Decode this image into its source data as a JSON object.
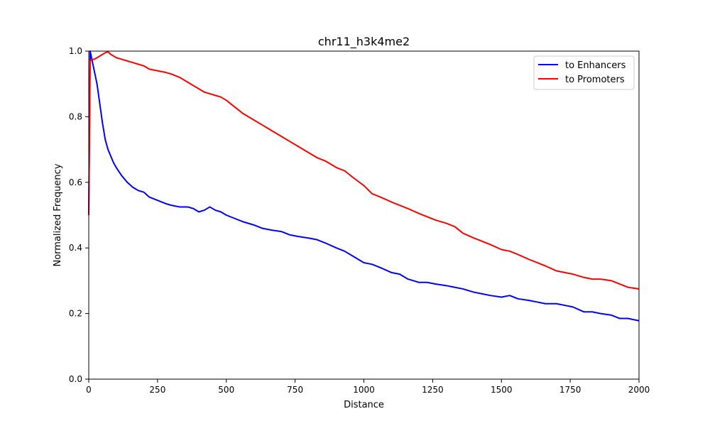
{
  "chart_data": {
    "type": "line",
    "title": "chr11_h3k4me2",
    "xlabel": "Distance",
    "ylabel": "Normalized Frequency",
    "xlim": [
      0,
      2000
    ],
    "ylim": [
      0,
      1.0
    ],
    "xticks": [
      0,
      250,
      500,
      750,
      1000,
      1250,
      1500,
      1750,
      2000
    ],
    "xtick_labels": [
      "0",
      "250",
      "500",
      "750",
      "1000",
      "1250",
      "1500",
      "1750",
      "2000"
    ],
    "yticks": [
      0,
      0.2,
      0.4,
      0.6,
      0.8,
      1.0
    ],
    "ytick_labels": [
      "0.0",
      "0.2",
      "0.4",
      "0.6",
      "0.8",
      "1.0"
    ],
    "grid": false,
    "legend_position": "top-right",
    "series": [
      {
        "name": "to Enhancers",
        "color": "#0000ff",
        "x": [
          0,
          5,
          10,
          20,
          30,
          40,
          50,
          60,
          70,
          80,
          90,
          100,
          120,
          140,
          160,
          180,
          200,
          220,
          250,
          280,
          300,
          330,
          360,
          380,
          400,
          420,
          440,
          460,
          480,
          500,
          530,
          560,
          600,
          630,
          660,
          700,
          730,
          760,
          800,
          830,
          860,
          900,
          930,
          960,
          1000,
          1030,
          1060,
          1100,
          1130,
          1160,
          1200,
          1230,
          1260,
          1300,
          1330,
          1360,
          1400,
          1430,
          1460,
          1500,
          1530,
          1560,
          1600,
          1630,
          1660,
          1700,
          1730,
          1760,
          1800,
          1830,
          1860,
          1900,
          1930,
          1960,
          2000
        ],
        "y": [
          0.5,
          1.0,
          0.98,
          0.94,
          0.9,
          0.84,
          0.78,
          0.73,
          0.7,
          0.68,
          0.66,
          0.645,
          0.62,
          0.6,
          0.585,
          0.575,
          0.57,
          0.555,
          0.545,
          0.535,
          0.53,
          0.525,
          0.525,
          0.52,
          0.51,
          0.515,
          0.525,
          0.515,
          0.51,
          0.5,
          0.49,
          0.48,
          0.47,
          0.46,
          0.455,
          0.45,
          0.44,
          0.435,
          0.43,
          0.425,
          0.415,
          0.4,
          0.39,
          0.375,
          0.355,
          0.35,
          0.34,
          0.325,
          0.32,
          0.305,
          0.295,
          0.295,
          0.29,
          0.285,
          0.28,
          0.275,
          0.265,
          0.26,
          0.255,
          0.25,
          0.255,
          0.245,
          0.24,
          0.235,
          0.23,
          0.23,
          0.225,
          0.22,
          0.205,
          0.205,
          0.2,
          0.195,
          0.185,
          0.185,
          0.178
        ]
      },
      {
        "name": "to Promoters",
        "color": "#ff0000",
        "x": [
          0,
          5,
          10,
          20,
          30,
          40,
          50,
          60,
          70,
          80,
          90,
          100,
          120,
          140,
          160,
          180,
          200,
          220,
          250,
          280,
          300,
          330,
          360,
          380,
          400,
          420,
          440,
          460,
          480,
          500,
          530,
          560,
          600,
          630,
          660,
          700,
          730,
          760,
          800,
          830,
          860,
          900,
          930,
          960,
          1000,
          1030,
          1060,
          1100,
          1130,
          1160,
          1200,
          1230,
          1260,
          1300,
          1330,
          1360,
          1400,
          1430,
          1460,
          1500,
          1530,
          1560,
          1600,
          1630,
          1660,
          1700,
          1730,
          1760,
          1800,
          1830,
          1860,
          1900,
          1930,
          1960,
          2000
        ],
        "y": [
          0.5,
          0.97,
          0.975,
          0.975,
          0.98,
          0.985,
          0.99,
          0.995,
          0.998,
          0.99,
          0.985,
          0.98,
          0.975,
          0.97,
          0.965,
          0.96,
          0.955,
          0.945,
          0.94,
          0.935,
          0.93,
          0.92,
          0.905,
          0.895,
          0.885,
          0.875,
          0.87,
          0.865,
          0.86,
          0.85,
          0.83,
          0.81,
          0.79,
          0.775,
          0.76,
          0.74,
          0.725,
          0.71,
          0.69,
          0.675,
          0.665,
          0.645,
          0.635,
          0.615,
          0.59,
          0.565,
          0.555,
          0.54,
          0.53,
          0.52,
          0.505,
          0.495,
          0.485,
          0.475,
          0.465,
          0.445,
          0.43,
          0.42,
          0.41,
          0.395,
          0.39,
          0.38,
          0.365,
          0.355,
          0.345,
          0.33,
          0.325,
          0.32,
          0.31,
          0.305,
          0.305,
          0.3,
          0.29,
          0.28,
          0.275
        ]
      }
    ]
  }
}
